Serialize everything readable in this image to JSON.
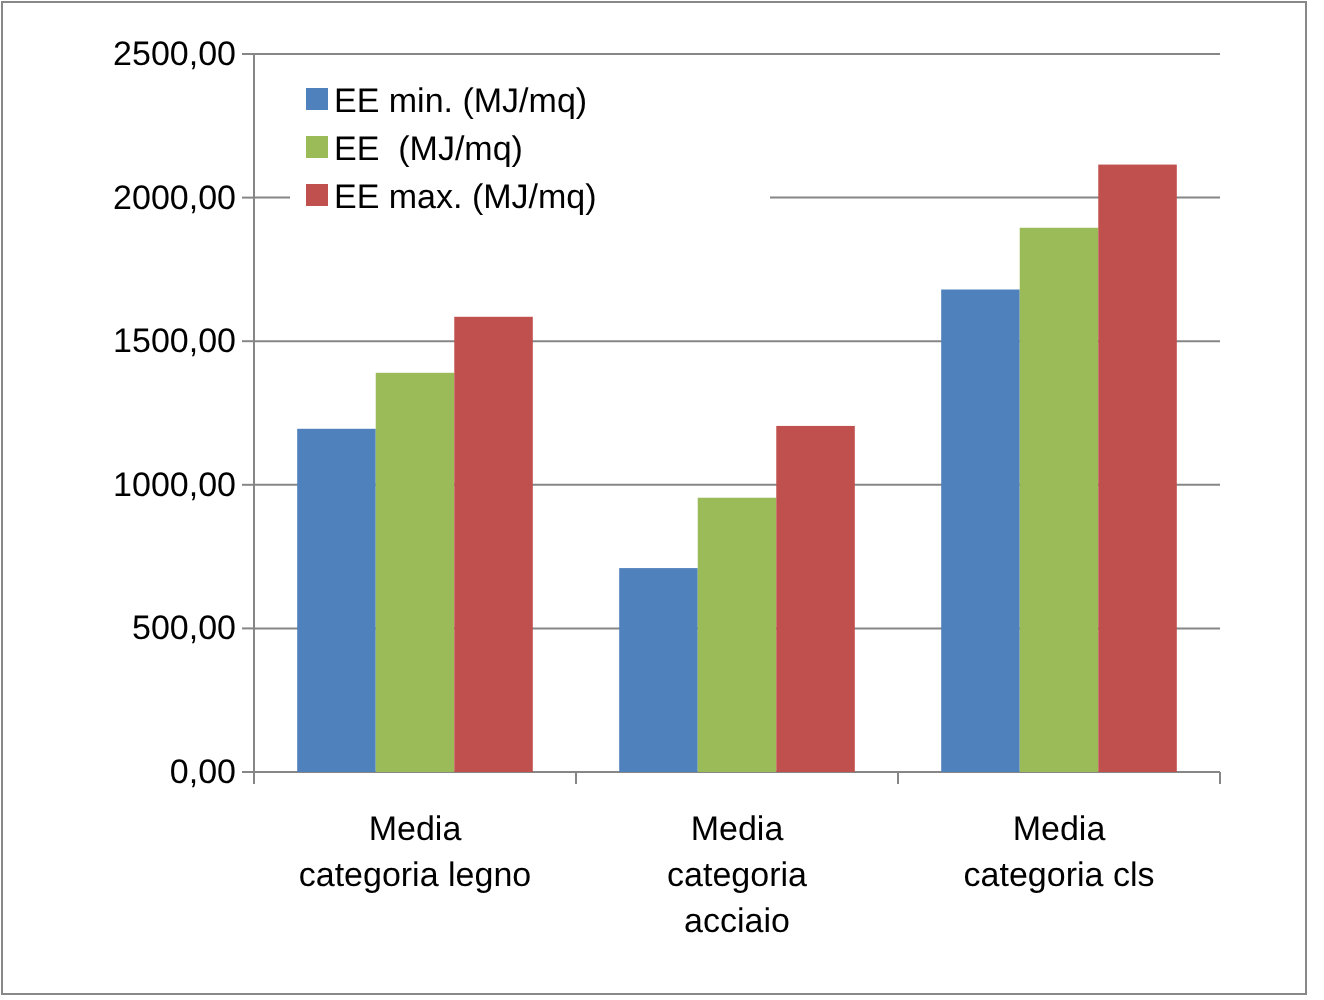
{
  "chart_data": {
    "type": "bar",
    "categories": [
      "Media categoria legno",
      "Media categoria acciaio",
      "Media categoria cls"
    ],
    "series": [
      {
        "name": "EE min. (MJ/mq)",
        "color": "#4f81bd",
        "values": [
          1195,
          710,
          1680
        ]
      },
      {
        "name": "EE  (MJ/mq)",
        "color": "#9bbb59",
        "values": [
          1390,
          955,
          1895
        ]
      },
      {
        "name": "EE max. (MJ/mq)",
        "color": "#c0504d",
        "values": [
          1585,
          1205,
          2115
        ]
      }
    ],
    "ylim": [
      0,
      2500
    ],
    "yticks": [
      {
        "value": 0,
        "label": "0,00"
      },
      {
        "value": 500,
        "label": "500,00"
      },
      {
        "value": 1000,
        "label": "1000,00"
      },
      {
        "value": 1500,
        "label": "1500,00"
      },
      {
        "value": 2000,
        "label": "2000,00"
      },
      {
        "value": 2500,
        "label": "2500,00"
      }
    ],
    "grid": "y",
    "legend": "top left"
  }
}
